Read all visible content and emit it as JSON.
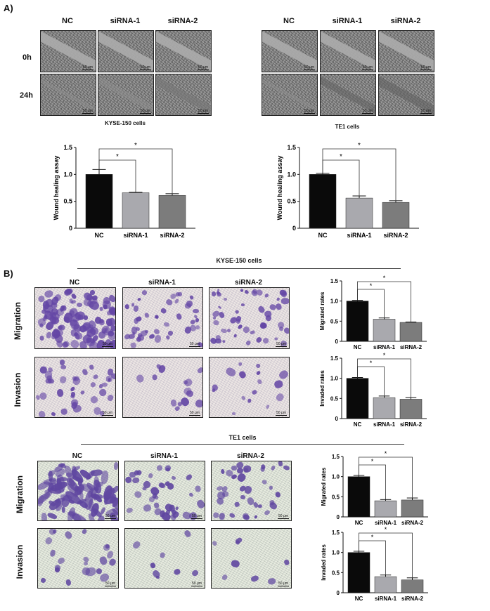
{
  "panelA": {
    "label": "A)",
    "kyse": {
      "columns": [
        "NC",
        "siRNA-1",
        "siRNA-2"
      ],
      "rows": [
        "0h",
        "24h"
      ],
      "title": "KYSE-150 cells",
      "scale_label": "50 μm"
    },
    "te1": {
      "columns": [
        "NC",
        "siRNA-1",
        "siRNA-2"
      ],
      "title": "TE1 cells",
      "scale_label": "50 μm"
    }
  },
  "panelB": {
    "label": "B)",
    "kyse_title": "KYSE-150 cells",
    "te1_title": "TE1 cells",
    "columns": [
      "NC",
      "siRNA-1",
      "siRNA-2"
    ],
    "rows": [
      "Migration",
      "Invasion"
    ],
    "scale_label": "50 μm"
  },
  "colors": {
    "nc": "#0a0a0a",
    "sirna1": "#a9a9ae",
    "sirna2": "#7c7c7c",
    "stain": "#5a3f9a"
  },
  "chart_data": [
    {
      "id": "kyse-wound",
      "type": "bar",
      "categories": [
        "NC",
        "siRNA-1",
        "siRNA-2"
      ],
      "values": [
        1.0,
        0.66,
        0.61
      ],
      "errors": [
        0.09,
        0.01,
        0.03
      ],
      "ylabel": "Wound healing assay",
      "ylim": [
        0,
        1.5
      ],
      "yticks": [
        "0",
        "0.5",
        "1.0",
        "1.5"
      ],
      "sig": [
        {
          "from": 0,
          "to": 1,
          "label": "*"
        },
        {
          "from": 0,
          "to": 2,
          "label": "*"
        }
      ]
    },
    {
      "id": "te1-wound",
      "type": "bar",
      "categories": [
        "NC",
        "siRNA-1",
        "siRNA-2"
      ],
      "values": [
        1.0,
        0.56,
        0.48
      ],
      "errors": [
        0.02,
        0.04,
        0.03
      ],
      "ylabel": "Wound healing assay",
      "ylim": [
        0,
        1.5
      ],
      "yticks": [
        "0",
        "0.5",
        "1.0",
        "1.5"
      ],
      "sig": [
        {
          "from": 0,
          "to": 1,
          "label": "*"
        },
        {
          "from": 0,
          "to": 2,
          "label": "*"
        }
      ]
    },
    {
      "id": "kyse-migration",
      "type": "bar",
      "categories": [
        "NC",
        "siRNA-1",
        "siRNA-2"
      ],
      "values": [
        1.0,
        0.55,
        0.47
      ],
      "errors": [
        0.02,
        0.03,
        0.01
      ],
      "ylabel": "Migrated rates",
      "ylim": [
        0,
        1.5
      ],
      "yticks": [
        "0",
        "0.5",
        "1.0",
        "1.5"
      ],
      "sig": [
        {
          "from": 0,
          "to": 1,
          "label": "*"
        },
        {
          "from": 0,
          "to": 2,
          "label": "*"
        }
      ]
    },
    {
      "id": "kyse-invasion",
      "type": "bar",
      "categories": [
        "NC",
        "siRNA-1",
        "siRNA-2"
      ],
      "values": [
        1.0,
        0.52,
        0.48
      ],
      "errors": [
        0.02,
        0.04,
        0.04
      ],
      "ylabel": "Invaded rates",
      "ylim": [
        0,
        1.5
      ],
      "yticks": [
        "0",
        "0.5",
        "1.0",
        "1.5"
      ],
      "sig": [
        {
          "from": 0,
          "to": 1,
          "label": "*"
        },
        {
          "from": 0,
          "to": 2,
          "label": "*"
        }
      ]
    },
    {
      "id": "te1-migration",
      "type": "bar",
      "categories": [
        "NC",
        "siRNA-1",
        "siRNA-2"
      ],
      "values": [
        1.0,
        0.4,
        0.42
      ],
      "errors": [
        0.03,
        0.03,
        0.05
      ],
      "ylabel": "Migrated rates",
      "ylim": [
        0,
        1.5
      ],
      "yticks": [
        "0",
        "0.5",
        "1.0",
        "1.5"
      ],
      "sig": [
        {
          "from": 0,
          "to": 1,
          "label": "*"
        },
        {
          "from": 0,
          "to": 2,
          "label": "*"
        }
      ]
    },
    {
      "id": "te1-invasion",
      "type": "bar",
      "categories": [
        "NC",
        "siRNA-1",
        "siRNA-2"
      ],
      "values": [
        1.0,
        0.4,
        0.32
      ],
      "errors": [
        0.03,
        0.04,
        0.05
      ],
      "ylabel": "Invaded rates",
      "ylim": [
        0,
        1.5
      ],
      "yticks": [
        "0",
        "0.5",
        "1.0",
        "1.5"
      ],
      "sig": [
        {
          "from": 0,
          "to": 1,
          "label": "*"
        },
        {
          "from": 0,
          "to": 2,
          "label": "*"
        }
      ]
    }
  ]
}
